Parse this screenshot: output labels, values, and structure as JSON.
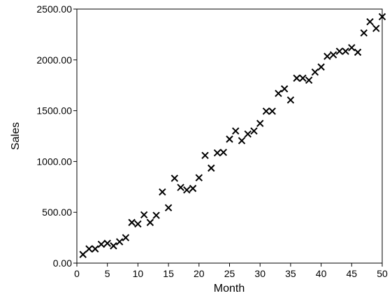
{
  "chart_data": {
    "type": "scatter",
    "title": "",
    "xlabel": "Month",
    "ylabel": "Sales",
    "xlim": [
      0,
      50
    ],
    "ylim": [
      0,
      2500
    ],
    "grid": false,
    "legend": "none",
    "marker": "x",
    "colors": {
      "marker": "#000000",
      "axis": "#000000",
      "background": "#ffffff"
    },
    "x_ticks": [
      "0",
      "5",
      "10",
      "15",
      "20",
      "25",
      "30",
      "35",
      "40",
      "45",
      "50"
    ],
    "y_ticks": [
      "0.00",
      "500.00",
      "1000.00",
      "1500.00",
      "2000.00",
      "2500.00"
    ],
    "series": [
      {
        "x": [
          1,
          2,
          3,
          4,
          5,
          6,
          7,
          8,
          9,
          10,
          11,
          12,
          13,
          14,
          15,
          16,
          17,
          18,
          19,
          20,
          21,
          22,
          23,
          24,
          25,
          26,
          27,
          28,
          29,
          30,
          31,
          32,
          33,
          34,
          35,
          36,
          37,
          38,
          39,
          40,
          41,
          42,
          43,
          44,
          45,
          46,
          47,
          48,
          49,
          50
        ],
        "y": [
          85,
          140,
          140,
          185,
          195,
          170,
          210,
          250,
          400,
          385,
          475,
          400,
          470,
          700,
          545,
          835,
          745,
          720,
          735,
          840,
          1060,
          935,
          1085,
          1090,
          1220,
          1300,
          1205,
          1270,
          1300,
          1375,
          1495,
          1495,
          1670,
          1715,
          1605,
          1820,
          1820,
          1800,
          1880,
          1930,
          2035,
          2050,
          2085,
          2085,
          2120,
          2075,
          2265,
          2375,
          2310,
          2425
        ]
      }
    ]
  }
}
